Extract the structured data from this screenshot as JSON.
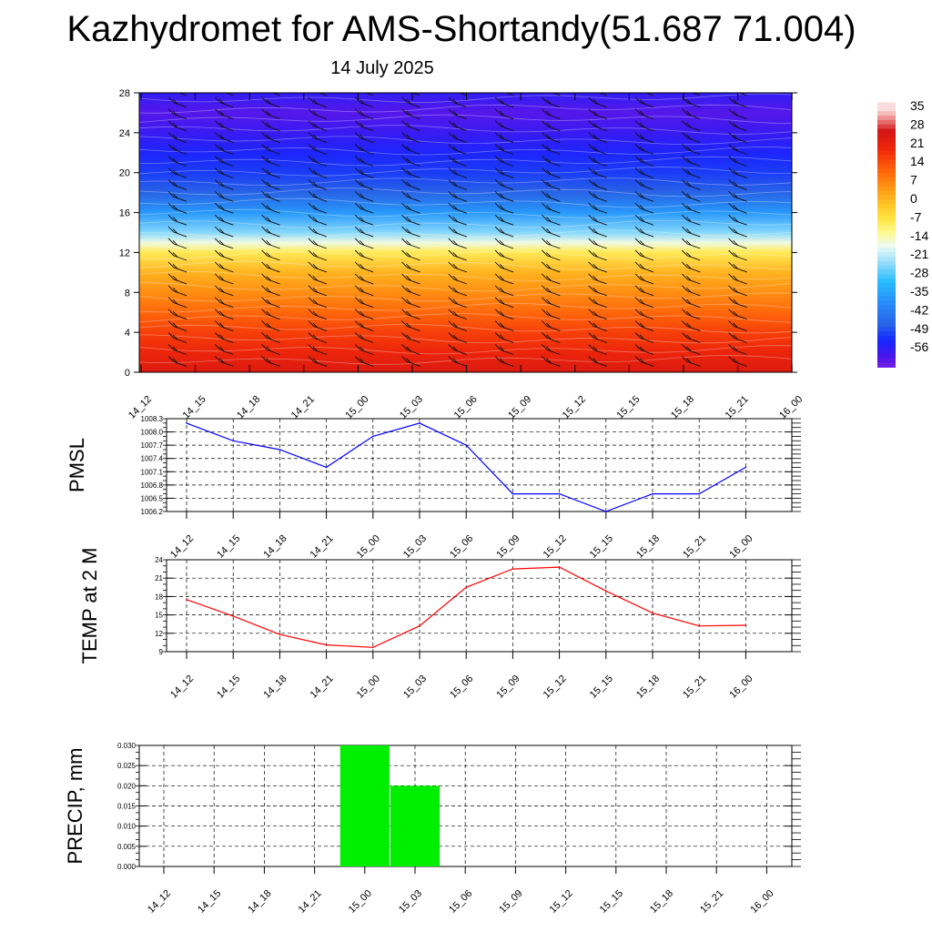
{
  "title": "Kazhydromet for AMS-Shortandy(51.687 71.004)",
  "subtitle": "14 July 2025",
  "colorbar": {
    "labels": [
      "35",
      "28",
      "21",
      "14",
      "7",
      "0",
      "-7",
      "-14",
      "-21",
      "-28",
      "-35",
      "-42",
      "-49",
      "-56"
    ]
  },
  "chart_data": [
    {
      "type": "heatmap",
      "name": "temperature-height-section",
      "x": [
        "14_12",
        "14_15",
        "14_18",
        "14_21",
        "15_00",
        "15_03",
        "15_06",
        "15_09",
        "15_12",
        "15_15",
        "15_18",
        "15_21",
        "16_00"
      ],
      "y_ticks": [
        0,
        4,
        8,
        12,
        16,
        20,
        24,
        28
      ],
      "ylim": [
        0,
        28
      ],
      "levels": [
        {
          "y": 0,
          "value": 26
        },
        {
          "y": 2,
          "value": 22
        },
        {
          "y": 4,
          "value": 18
        },
        {
          "y": 6,
          "value": 13
        },
        {
          "y": 8,
          "value": 8
        },
        {
          "y": 10,
          "value": 3
        },
        {
          "y": 12,
          "value": -6
        },
        {
          "y": 13,
          "value": -14
        },
        {
          "y": 14,
          "value": -22
        },
        {
          "y": 16,
          "value": -34
        },
        {
          "y": 18,
          "value": -44
        },
        {
          "y": 20,
          "value": -48
        },
        {
          "y": 22,
          "value": -51
        },
        {
          "y": 24,
          "value": -54
        },
        {
          "y": 26,
          "value": -57
        },
        {
          "y": 28,
          "value": -53
        }
      ],
      "wind_barbs": true
    },
    {
      "type": "line",
      "ylabel": "PMSL",
      "x": [
        "14_12",
        "14_15",
        "14_18",
        "14_21",
        "15_00",
        "15_03",
        "15_06",
        "15_09",
        "15_12",
        "15_15",
        "15_18",
        "15_21",
        "16_00"
      ],
      "values": [
        1008.2,
        1007.8,
        1007.6,
        1007.2,
        1007.9,
        1008.2,
        1007.7,
        1006.6,
        1006.6,
        1006.2,
        1006.6,
        1006.6,
        1007.2
      ],
      "ylim": [
        1006.2,
        1008.3
      ],
      "y_ticks": [
        "1008.3",
        "1008.0",
        "1007.7",
        "1007.4",
        "1007.1",
        "1006.8",
        "1006.5",
        "1006.2"
      ],
      "color": "#0000ff"
    },
    {
      "type": "line",
      "ylabel": "TEMP at 2 M",
      "x": [
        "14_12",
        "14_15",
        "14_18",
        "14_21",
        "15_00",
        "15_03",
        "15_06",
        "15_09",
        "15_12",
        "15_15",
        "15_18",
        "15_21",
        "16_00"
      ],
      "values": [
        17.5,
        14.8,
        11.8,
        10.1,
        9.7,
        13.2,
        19.5,
        22.5,
        22.8,
        18.9,
        15.3,
        13.2,
        13.3
      ],
      "ylim": [
        9,
        24
      ],
      "y_ticks": [
        "24",
        "21",
        "18",
        "15",
        "12",
        "9"
      ],
      "color": "#ff0000"
    },
    {
      "type": "bar",
      "ylabel": "PRECIP, mm",
      "categories": [
        "14_12",
        "14_15",
        "14_18",
        "14_21",
        "15_00",
        "15_03",
        "15_06",
        "15_09",
        "15_12",
        "15_15",
        "15_18",
        "15_21",
        "16_00"
      ],
      "values": [
        0,
        0,
        0,
        0,
        0.03,
        0.02,
        0,
        0,
        0,
        0,
        0,
        0,
        0
      ],
      "ylim": [
        0,
        0.03
      ],
      "y_ticks": [
        "0.030",
        "0.025",
        "0.020",
        "0.015",
        "0.010",
        "0.005",
        "0.000"
      ],
      "color": "#00ee00"
    }
  ]
}
